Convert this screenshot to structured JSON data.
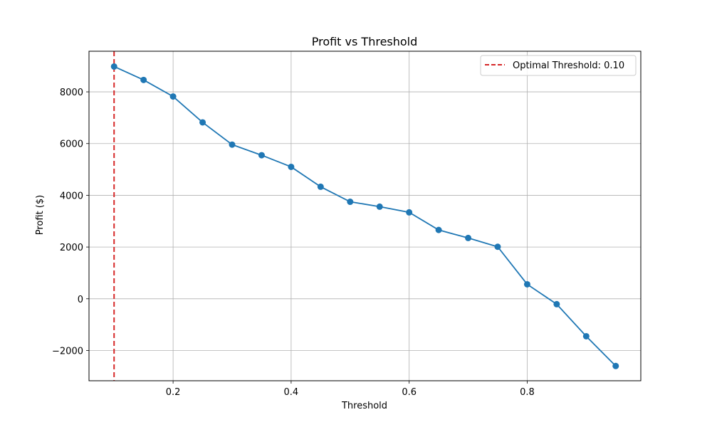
{
  "chart_data": {
    "type": "line",
    "title": "Profit vs Threshold",
    "xlabel": "Threshold",
    "ylabel": "Profit ($)",
    "xlim": [
      0.0575,
      0.9925
    ],
    "ylim": [
      -3170,
      9570
    ],
    "x_ticks": [
      0.2,
      0.4,
      0.6,
      0.8
    ],
    "x_tick_labels": [
      "0.2",
      "0.4",
      "0.6",
      "0.8"
    ],
    "y_ticks": [
      -2000,
      0,
      2000,
      4000,
      6000,
      8000
    ],
    "y_tick_labels": [
      "−2000",
      "0",
      "2000",
      "4000",
      "6000",
      "8000"
    ],
    "grid": true,
    "legend_position": "top-right",
    "series": [
      {
        "x": [
          0.1,
          0.15,
          0.2,
          0.25,
          0.3,
          0.35,
          0.4,
          0.45,
          0.5,
          0.55,
          0.6,
          0.65,
          0.7,
          0.75,
          0.8,
          0.85,
          0.9,
          0.95
        ],
        "values": [
          8980,
          8460,
          7820,
          6820,
          5960,
          5550,
          5100,
          4330,
          3750,
          3560,
          3340,
          2660,
          2350,
          2010,
          560,
          -210,
          -1450,
          -2600
        ],
        "color": "#1f77b4",
        "marker": "circle"
      }
    ],
    "reference_lines": [
      {
        "orientation": "vertical",
        "x": 0.1,
        "label": "Optimal Threshold: 0.10",
        "color": "#d62728",
        "style": "dashed"
      }
    ]
  }
}
